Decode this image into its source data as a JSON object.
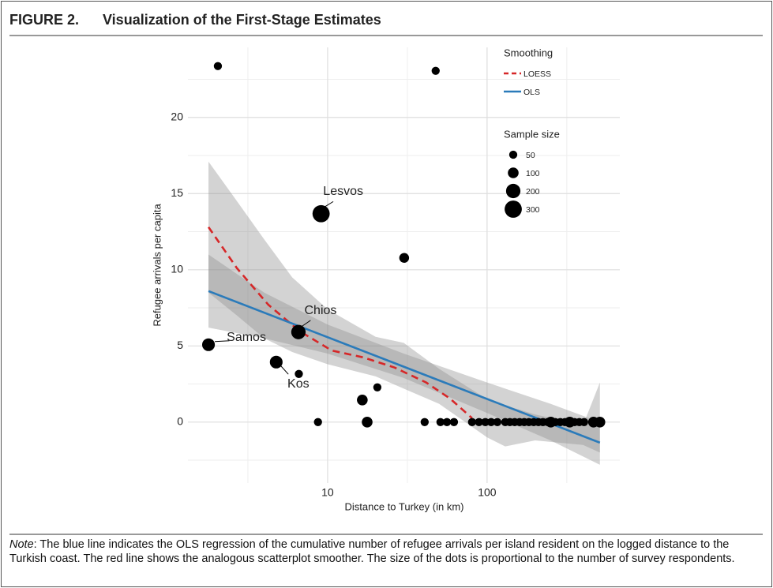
{
  "chart_data": {
    "type": "scatter",
    "figure_label": "FIGURE 2.",
    "title": "Visualization of the First-Stage Estimates",
    "xlabel": "Distance to Turkey (in km)",
    "ylabel": "Refugee arrivals per capita",
    "log_x": true,
    "grid": true,
    "xlim": [
      1.33,
      680
    ],
    "ylim": [
      -4,
      24.6
    ],
    "xticks": [
      10,
      100
    ],
    "yticks": [
      0,
      5,
      10,
      15,
      20
    ],
    "points": {
      "color": "#000000",
      "x": [
        2.05,
        47.6,
        9.1,
        30.2,
        6.56,
        1.79,
        4.76,
        6.6,
        16.5,
        20.5,
        8.7,
        17.7,
        40.6,
        51,
        56,
        62,
        80.5,
        89,
        97.5,
        106,
        116,
        130,
        139,
        149,
        160,
        171,
        183,
        196,
        210,
        224,
        240,
        251,
        268,
        288,
        308,
        330,
        354,
        379,
        406,
        465,
        510
      ],
      "values": [
        23.37,
        23.06,
        13.68,
        10.78,
        5.91,
        5.08,
        3.94,
        3.16,
        1.45,
        2.28,
        0,
        0,
        0,
        0,
        0,
        0,
        0,
        0,
        0,
        0,
        0,
        0,
        0,
        0,
        0,
        0,
        0,
        0,
        0,
        0,
        0,
        0,
        0,
        0,
        0,
        0,
        0,
        0,
        0,
        0,
        0
      ],
      "sizes": [
        50,
        50,
        300,
        80,
        200,
        150,
        150,
        50,
        100,
        50,
        50,
        100,
        50,
        50,
        50,
        50,
        50,
        50,
        50,
        50,
        50,
        50,
        50,
        50,
        50,
        50,
        50,
        50,
        50,
        50,
        50,
        100,
        50,
        50,
        50,
        100,
        50,
        50,
        50,
        100,
        100
      ],
      "labels": [
        null,
        null,
        "Lesvos",
        null,
        "Chios",
        "Samos",
        "Kos",
        null,
        null,
        null,
        null,
        null,
        null,
        null,
        null,
        null,
        null,
        null,
        null,
        null,
        null,
        null,
        null,
        null,
        null,
        null,
        null,
        null,
        null,
        null,
        null,
        null,
        null,
        null,
        null,
        null,
        null,
        null,
        null,
        null,
        null
      ]
    },
    "band_color": "#8c8c8c",
    "legend_title": "Smoothing",
    "series": [
      {
        "name": "LOESS",
        "color": "#d62728",
        "dashed": true,
        "x": [
          1.79,
          2.7,
          4.25,
          6.7,
          10.6,
          16.7,
          26.3,
          41.5,
          58.5,
          80.5
        ],
        "values": [
          12.8,
          10.1,
          7.7,
          5.96,
          4.7,
          4.25,
          3.58,
          2.6,
          1.55,
          0.26
        ],
        "band": {
          "x": [
            1.79,
            2.7,
            4,
            6,
            10,
            20,
            30,
            50,
            100,
            130,
            200,
            400,
            510
          ],
          "upper": [
            17.1,
            14.5,
            12.0,
            9.5,
            7.4,
            5.6,
            5.2,
            3.5,
            1.5,
            1.1,
            0.5,
            -0.2,
            2.6
          ],
          "lower": [
            8.5,
            7.0,
            5.5,
            4.6,
            3.8,
            3.0,
            2.2,
            1.2,
            -1.0,
            -1.6,
            -1.2,
            -1.5,
            -2.0
          ]
        }
      },
      {
        "name": "OLS",
        "color": "#2b7bba",
        "dashed": false,
        "x": [
          1.79,
          510
        ],
        "values": [
          8.6,
          -1.35
        ],
        "band": {
          "x": [
            1.79,
            4,
            10,
            30,
            100,
            250,
            510
          ],
          "upper": [
            11.0,
            8.5,
            6.4,
            4.5,
            2.6,
            1.2,
            0.0
          ],
          "lower": [
            6.2,
            5.5,
            4.5,
            2.9,
            0.6,
            -1.2,
            -2.8
          ]
        }
      }
    ],
    "size_legend": {
      "title": "Sample size",
      "values": [
        50,
        100,
        200,
        300
      ]
    }
  },
  "note": {
    "label": "Note",
    "text": ": The blue line indicates the OLS regression of the cumulative number of refugee arrivals per island resident on the logged distance to the Turkish coast. The red line shows the analogous scatterplot smoother. The size of the dots is proportional to the number of survey respondents."
  }
}
